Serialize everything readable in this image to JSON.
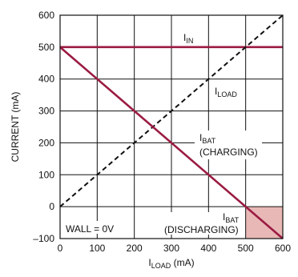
{
  "chart_data": {
    "type": "line",
    "xlabel": {
      "main": "I",
      "sub": "LOAD",
      "unit": " (mA)"
    },
    "ylabel": "CURRENT (mA)",
    "xlim": [
      0,
      600
    ],
    "ylim": [
      -100,
      600
    ],
    "x_ticks": [
      0,
      100,
      200,
      300,
      400,
      500,
      600
    ],
    "y_ticks": [
      -100,
      0,
      100,
      200,
      300,
      400,
      500,
      600
    ],
    "x_tick_labels": [
      "0",
      "100",
      "200",
      "300",
      "400",
      "500",
      "600"
    ],
    "y_tick_labels": [
      "–100",
      "0",
      "100",
      "200",
      "300",
      "400",
      "500",
      "600"
    ],
    "grid": true,
    "series": [
      {
        "name": "IIN",
        "color": "#9b1b42",
        "style": "solid",
        "x": [
          0,
          600
        ],
        "y": [
          500,
          500
        ]
      },
      {
        "name": "ILOAD",
        "color": "#111111",
        "style": "dashed",
        "x": [
          0,
          600
        ],
        "y": [
          0,
          600
        ]
      },
      {
        "name": "IBAT",
        "color": "#9b1b42",
        "style": "solid",
        "x": [
          0,
          600
        ],
        "y": [
          500,
          -100
        ]
      }
    ],
    "shaded_region": {
      "x": [
        500,
        600
      ],
      "y": [
        -100,
        0
      ],
      "color": "#e8b8b6"
    },
    "annotations": {
      "iin": {
        "main": "I",
        "sub": "IN"
      },
      "iload": {
        "main": "I",
        "sub": "LOAD"
      },
      "ibat_charging": {
        "main": "I",
        "sub": "BAT",
        "line2": "(CHARGING)"
      },
      "ibat_discharging": {
        "main": "I",
        "sub": "BAT",
        "line2": "(DISCHARGING)"
      },
      "wall": "WALL = 0V"
    }
  }
}
